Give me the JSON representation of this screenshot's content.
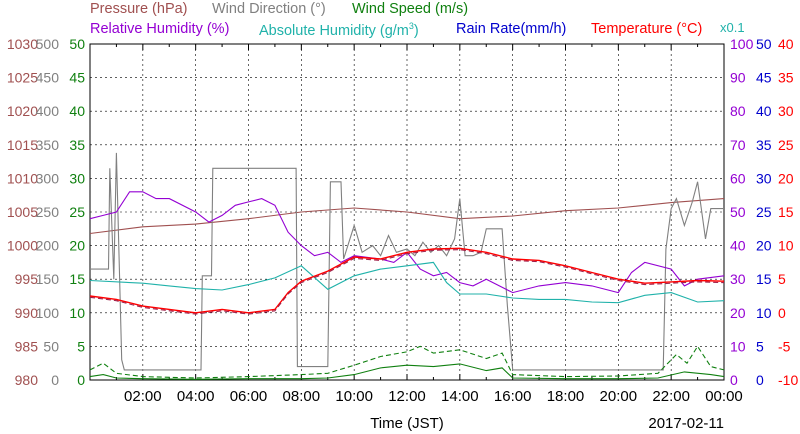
{
  "headers": {
    "pressure": "Pressure (hPa)",
    "wind_direction": "Wind Direction (°)",
    "wind_speed": "Wind Speed (m/s)",
    "relative_humidity": "Relative Humidity (%)",
    "absolute_humidity_base": "Absolute Humidity (g/m",
    "absolute_humidity_sup": "3",
    "absolute_humidity_end": ")",
    "rain_rate": "Rain Rate(mm/h)",
    "temperature": "Temperature (°C)",
    "x01": "x0.1"
  },
  "colors": {
    "pressure": "#a05050",
    "wind_direction": "#808080",
    "wind_speed": "#108010",
    "relative_humidity": "#9400d3",
    "absolute_humidity": "#20b2aa",
    "rain_rate": "#0000cd",
    "temperature": "#ff0000",
    "dewpoint": "#a0204a"
  },
  "chart_data": {
    "type": "line",
    "title": "",
    "xlabel": "Time (JST)",
    "date_label": "2017-02-11",
    "xlim": [
      0,
      24
    ],
    "x_ticks": [
      "02:00",
      "04:00",
      "06:00",
      "08:00",
      "10:00",
      "12:00",
      "14:00",
      "16:00",
      "18:00",
      "20:00",
      "22:00",
      "00:00"
    ],
    "grid": true,
    "axes": {
      "pressure": {
        "ticks": [
          "1030",
          "1025",
          "1020",
          "1015",
          "1010",
          "1005",
          "1000",
          "995",
          "990",
          "985",
          "980"
        ],
        "range": [
          980,
          1030
        ]
      },
      "wind_direction": {
        "ticks": [
          "500",
          "450",
          "400",
          "350",
          "300",
          "250",
          "200",
          "150",
          "100",
          "50",
          "0"
        ],
        "range": [
          0,
          500
        ]
      },
      "wind_speed": {
        "ticks": [
          "50",
          "45",
          "40",
          "35",
          "30",
          "25",
          "20",
          "15",
          "10",
          "5",
          "0"
        ],
        "range": [
          0,
          50
        ]
      },
      "relative_humidity": {
        "ticks": [
          "100",
          "90",
          "80",
          "70",
          "60",
          "50",
          "40",
          "30",
          "20",
          "10",
          "0"
        ],
        "range": [
          0,
          100
        ]
      },
      "rain_rate": {
        "ticks": [
          "50",
          "45",
          "40",
          "35",
          "30",
          "25",
          "20",
          "15",
          "10",
          "5",
          "0"
        ],
        "range": [
          0,
          50
        ]
      },
      "temperature": {
        "ticks": [
          "40",
          "35",
          "30",
          "25",
          "20",
          "15",
          "10",
          "5",
          "0",
          "-5",
          "-10"
        ],
        "range": [
          -10,
          40
        ]
      }
    },
    "series": [
      {
        "key": "pressure",
        "name": "Pressure (hPa)",
        "axis": "pressure",
        "color": "#a05050",
        "points": [
          [
            0,
            1001.8
          ],
          [
            2,
            1002.8
          ],
          [
            4,
            1003.2
          ],
          [
            6,
            1004.0
          ],
          [
            8,
            1005.0
          ],
          [
            10,
            1005.6
          ],
          [
            12,
            1005.0
          ],
          [
            14,
            1004.0
          ],
          [
            16,
            1004.4
          ],
          [
            18,
            1005.2
          ],
          [
            20,
            1005.6
          ],
          [
            22,
            1006.4
          ],
          [
            24,
            1007.0
          ]
        ]
      },
      {
        "key": "wind_direction",
        "name": "Wind Direction (°)",
        "axis": "wind_direction",
        "color": "#808080",
        "points": [
          [
            0,
            165
          ],
          [
            0.7,
            165
          ],
          [
            0.75,
            315
          ],
          [
            0.9,
            150
          ],
          [
            1.0,
            338
          ],
          [
            1.2,
            30
          ],
          [
            1.3,
            15
          ],
          [
            3.8,
            15
          ],
          [
            4.2,
            15
          ],
          [
            4.25,
            155
          ],
          [
            4.6,
            155
          ],
          [
            4.65,
            315
          ],
          [
            7.8,
            315
          ],
          [
            7.85,
            20
          ],
          [
            9.0,
            20
          ],
          [
            9.1,
            295
          ],
          [
            9.5,
            295
          ],
          [
            9.6,
            180
          ],
          [
            10.0,
            230
          ],
          [
            10.3,
            190
          ],
          [
            10.7,
            200
          ],
          [
            11.0,
            185
          ],
          [
            11.3,
            215
          ],
          [
            11.6,
            190
          ],
          [
            12.0,
            195
          ],
          [
            12.3,
            185
          ],
          [
            12.6,
            205
          ],
          [
            12.9,
            190
          ],
          [
            13.2,
            200
          ],
          [
            13.5,
            185
          ],
          [
            13.8,
            210
          ],
          [
            14.0,
            270
          ],
          [
            14.2,
            185
          ],
          [
            14.5,
            185
          ],
          [
            14.8,
            190
          ],
          [
            15.0,
            225
          ],
          [
            15.6,
            225
          ],
          [
            15.8,
            110
          ],
          [
            16.0,
            15
          ],
          [
            21.7,
            15
          ],
          [
            21.8,
            195
          ],
          [
            22.0,
            255
          ],
          [
            22.2,
            270
          ],
          [
            22.5,
            230
          ],
          [
            22.8,
            265
          ],
          [
            23.0,
            295
          ],
          [
            23.3,
            210
          ],
          [
            23.5,
            255
          ],
          [
            23.8,
            255
          ],
          [
            24,
            255
          ]
        ]
      },
      {
        "key": "wind_speed_avg",
        "name": "Wind Speed (m/s)",
        "axis": "wind_speed",
        "color": "#108010",
        "points": [
          [
            0,
            0.5
          ],
          [
            0.5,
            0.8
          ],
          [
            1,
            0.3
          ],
          [
            2,
            0.2
          ],
          [
            4,
            0.1
          ],
          [
            6,
            0.2
          ],
          [
            8,
            0.2
          ],
          [
            9,
            0.3
          ],
          [
            10,
            0.8
          ],
          [
            11,
            1.8
          ],
          [
            12,
            2.2
          ],
          [
            13,
            2.0
          ],
          [
            14,
            2.4
          ],
          [
            15,
            1.4
          ],
          [
            15.6,
            1.8
          ],
          [
            16,
            0.3
          ],
          [
            18,
            0.2
          ],
          [
            20,
            0.2
          ],
          [
            21.5,
            0.3
          ],
          [
            22.5,
            1.2
          ],
          [
            23.5,
            0.8
          ],
          [
            24,
            0.5
          ]
        ]
      },
      {
        "key": "wind_speed_gust",
        "name": "Wind Speed (m/s)",
        "axis": "wind_speed",
        "color": "#108010",
        "dashed": true,
        "points": [
          [
            0,
            1.5
          ],
          [
            0.5,
            2.5
          ],
          [
            1,
            1.0
          ],
          [
            2,
            0.5
          ],
          [
            4,
            0.3
          ],
          [
            6,
            0.5
          ],
          [
            8,
            0.8
          ],
          [
            9,
            1.0
          ],
          [
            10,
            2.2
          ],
          [
            11,
            3.5
          ],
          [
            12,
            4.2
          ],
          [
            12.5,
            5.0
          ],
          [
            13,
            4.0
          ],
          [
            14,
            4.5
          ],
          [
            15,
            3.2
          ],
          [
            15.6,
            4.0
          ],
          [
            16,
            0.8
          ],
          [
            18,
            0.5
          ],
          [
            20,
            0.6
          ],
          [
            21.5,
            1.0
          ],
          [
            22.2,
            3.8
          ],
          [
            22.6,
            2.5
          ],
          [
            23,
            5.0
          ],
          [
            23.5,
            2.0
          ],
          [
            24,
            1.5
          ]
        ]
      },
      {
        "key": "relative_humidity",
        "name": "Relative Humidity (%)",
        "axis": "relative_humidity",
        "color": "#9400d3",
        "points": [
          [
            0,
            48
          ],
          [
            0.5,
            49
          ],
          [
            1,
            50
          ],
          [
            1.5,
            56
          ],
          [
            2,
            56
          ],
          [
            2.5,
            54
          ],
          [
            3,
            54
          ],
          [
            4,
            50
          ],
          [
            4.5,
            47
          ],
          [
            5,
            49
          ],
          [
            5.5,
            52
          ],
          [
            6,
            53
          ],
          [
            6.5,
            54
          ],
          [
            7,
            52
          ],
          [
            7.5,
            44
          ],
          [
            8,
            40
          ],
          [
            8.5,
            37
          ],
          [
            9,
            38
          ],
          [
            9.5,
            35
          ],
          [
            10,
            37
          ],
          [
            11,
            36
          ],
          [
            11.5,
            35
          ],
          [
            12,
            38
          ],
          [
            12.5,
            33
          ],
          [
            13,
            31
          ],
          [
            13.5,
            32
          ],
          [
            14,
            29
          ],
          [
            14.5,
            28
          ],
          [
            15,
            30
          ],
          [
            16,
            26
          ],
          [
            17,
            28
          ],
          [
            18,
            29
          ],
          [
            19,
            28
          ],
          [
            20,
            26
          ],
          [
            20.5,
            32
          ],
          [
            21,
            35
          ],
          [
            22,
            33
          ],
          [
            22.5,
            28
          ],
          [
            23,
            30
          ],
          [
            24,
            31
          ]
        ]
      },
      {
        "key": "absolute_humidity",
        "name": "Absolute Humidity (g/m3)",
        "axis": "wind_speed",
        "color": "#20b2aa",
        "points": [
          [
            0,
            14.8
          ],
          [
            2,
            14.4
          ],
          [
            3,
            14.0
          ],
          [
            4,
            13.6
          ],
          [
            5,
            13.4
          ],
          [
            6,
            14.2
          ],
          [
            7,
            15.2
          ],
          [
            8,
            17.0
          ],
          [
            9,
            13.5
          ],
          [
            10,
            15.5
          ],
          [
            11,
            16.5
          ],
          [
            12,
            17.0
          ],
          [
            13,
            17.5
          ],
          [
            13.5,
            14.5
          ],
          [
            14,
            12.8
          ],
          [
            15,
            12.8
          ],
          [
            16,
            12.2
          ],
          [
            17,
            12.0
          ],
          [
            18,
            12.0
          ],
          [
            19,
            11.6
          ],
          [
            20,
            11.5
          ],
          [
            21,
            12.6
          ],
          [
            22,
            13.0
          ],
          [
            23,
            11.6
          ],
          [
            24,
            11.8
          ]
        ]
      },
      {
        "key": "temperature",
        "name": "Temperature (°C)",
        "axis": "temperature",
        "color": "#ff0000",
        "points": [
          [
            0,
            2.5
          ],
          [
            1,
            2.0
          ],
          [
            2,
            1.0
          ],
          [
            3,
            0.5
          ],
          [
            4,
            0.0
          ],
          [
            5,
            0.5
          ],
          [
            6,
            0.0
          ],
          [
            7,
            0.5
          ],
          [
            7.5,
            3.0
          ],
          [
            8,
            4.7
          ],
          [
            9,
            6.2
          ],
          [
            10,
            8.3
          ],
          [
            11,
            8.0
          ],
          [
            12,
            9.0
          ],
          [
            13,
            9.5
          ],
          [
            14,
            9.6
          ],
          [
            15,
            9.0
          ],
          [
            16,
            8.0
          ],
          [
            17,
            7.8
          ],
          [
            18,
            7.0
          ],
          [
            19,
            6.0
          ],
          [
            20,
            5.0
          ],
          [
            21,
            4.4
          ],
          [
            22,
            4.6
          ],
          [
            23,
            4.8
          ],
          [
            24,
            4.7
          ]
        ]
      },
      {
        "key": "dewpoint",
        "name": "Temperature (°C)",
        "axis": "temperature",
        "color": "#a0204a",
        "dashed": true,
        "points": [
          [
            0,
            2.3
          ],
          [
            1,
            1.8
          ],
          [
            2,
            0.8
          ],
          [
            3,
            0.3
          ],
          [
            4,
            -0.2
          ],
          [
            5,
            0.3
          ],
          [
            6,
            -0.2
          ],
          [
            7,
            0.3
          ],
          [
            7.5,
            2.8
          ],
          [
            8,
            4.5
          ],
          [
            9,
            6.0
          ],
          [
            10,
            8.1
          ],
          [
            11,
            7.8
          ],
          [
            12,
            8.8
          ],
          [
            13,
            9.3
          ],
          [
            14,
            9.4
          ],
          [
            15,
            8.8
          ],
          [
            16,
            7.8
          ],
          [
            17,
            7.6
          ],
          [
            18,
            6.8
          ],
          [
            19,
            5.8
          ],
          [
            20,
            4.8
          ],
          [
            21,
            4.2
          ],
          [
            22,
            4.4
          ],
          [
            23,
            4.6
          ],
          [
            24,
            4.5
          ]
        ]
      }
    ]
  }
}
